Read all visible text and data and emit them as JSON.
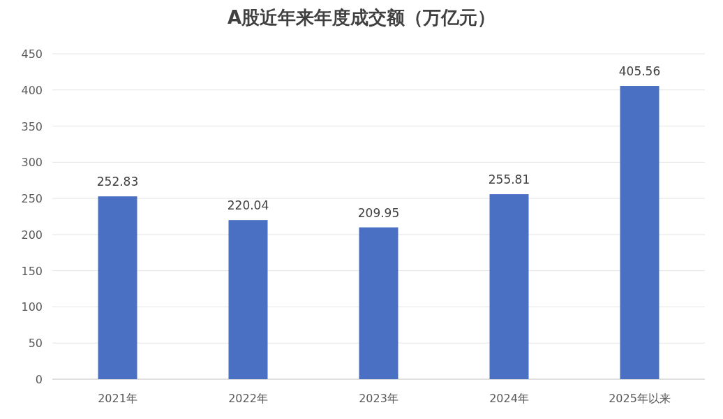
{
  "chart_data": {
    "type": "bar",
    "title": "A股近年来年度成交额（万亿元）",
    "categories": [
      "2021年",
      "2022年",
      "2023年",
      "2024年",
      "2025年以来"
    ],
    "values": [
      252.83,
      220.04,
      209.95,
      255.81,
      405.56
    ],
    "color": "#4a70c4",
    "ylim": [
      0,
      450
    ],
    "yticks": [
      0,
      50,
      100,
      150,
      200,
      250,
      300,
      350,
      400,
      450
    ],
    "grid": "y",
    "data_labels": true
  }
}
